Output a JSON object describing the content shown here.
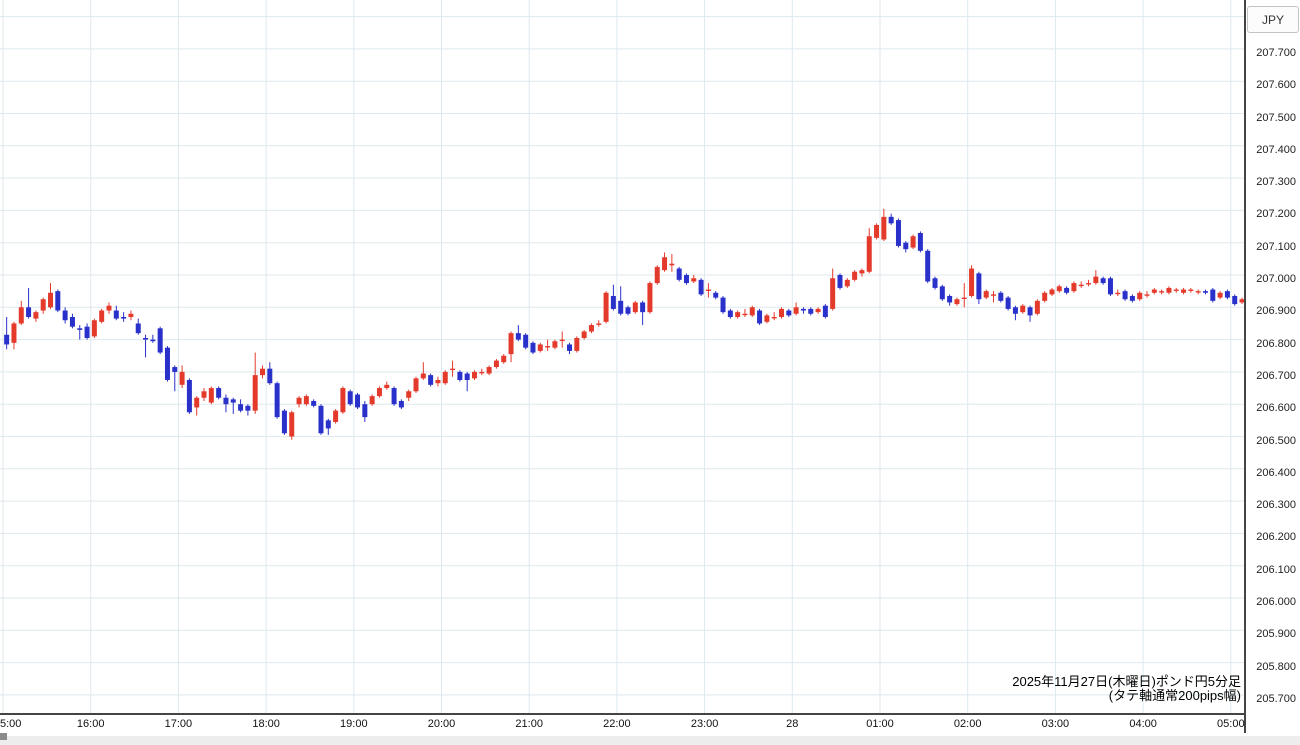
{
  "currency_label": "JPY",
  "annotation": {
    "line1": "2025年11月27日(木曜日)ポンド円5分足",
    "line2": "(タテ軸通常200pips幅)"
  },
  "colors": {
    "up_candle": "#e43a2c",
    "down_candle": "#2a31cb",
    "grid": "#dde9ee",
    "axis": "#444444",
    "text": "#222222"
  },
  "chart_data": {
    "type": "candlestick",
    "title": "ポンド円 5分足 (GBP/JPY 5-minute)",
    "date": "2025年11月27日(木曜日)",
    "note": "タテ軸通常200pips幅",
    "start_time": "15:00",
    "interval_minutes": 5,
    "x_tick_labels": [
      "5:00",
      "16:00",
      "17:00",
      "18:00",
      "19:00",
      "20:00",
      "21:00",
      "22:00",
      "23:00",
      "28",
      "01:00",
      "02:00",
      "03:00",
      "04:00",
      "05:00"
    ],
    "y_tick_labels": [
      "207.700",
      "207.600",
      "207.500",
      "207.400",
      "207.300",
      "207.200",
      "207.100",
      "207.000",
      "206.900",
      "206.800",
      "206.700",
      "206.600",
      "206.500",
      "206.400",
      "206.300",
      "206.200",
      "206.100",
      "206.000",
      "205.900",
      "205.800",
      "205.700"
    ],
    "ylim": [
      205.641,
      207.851
    ],
    "grid": true,
    "candles_ohlc": [
      [
        206.815,
        206.87,
        206.77,
        206.785
      ],
      [
        206.79,
        206.855,
        206.77,
        206.85
      ],
      [
        206.85,
        206.92,
        206.845,
        206.9
      ],
      [
        206.9,
        206.96,
        206.865,
        206.87
      ],
      [
        206.865,
        206.89,
        206.855,
        206.885
      ],
      [
        206.89,
        206.93,
        206.88,
        206.925
      ],
      [
        206.9,
        206.975,
        206.895,
        206.945
      ],
      [
        206.95,
        206.955,
        206.885,
        206.89
      ],
      [
        206.89,
        206.9,
        206.85,
        206.86
      ],
      [
        206.87,
        206.88,
        206.835,
        206.84
      ],
      [
        206.835,
        206.845,
        206.8,
        206.83
      ],
      [
        206.84,
        206.85,
        206.8,
        206.805
      ],
      [
        206.81,
        206.865,
        206.805,
        206.86
      ],
      [
        206.855,
        206.895,
        206.85,
        206.89
      ],
      [
        206.89,
        206.915,
        206.88,
        206.905
      ],
      [
        206.89,
        206.905,
        206.86,
        206.865
      ],
      [
        206.87,
        206.885,
        206.855,
        206.865
      ],
      [
        206.87,
        206.89,
        206.86,
        206.88
      ],
      [
        206.85,
        206.865,
        206.815,
        206.82
      ],
      [
        206.805,
        206.815,
        206.745,
        206.8
      ],
      [
        206.8,
        206.815,
        206.79,
        206.795
      ],
      [
        206.835,
        206.84,
        206.755,
        206.76
      ],
      [
        206.775,
        206.78,
        206.67,
        206.675
      ],
      [
        206.715,
        206.72,
        206.64,
        206.7
      ],
      [
        206.66,
        206.72,
        206.65,
        206.7
      ],
      [
        206.675,
        206.68,
        206.57,
        206.575
      ],
      [
        206.59,
        206.625,
        206.565,
        206.62
      ],
      [
        206.62,
        206.65,
        206.61,
        206.64
      ],
      [
        206.605,
        206.655,
        206.6,
        206.65
      ],
      [
        206.65,
        206.655,
        206.615,
        206.62
      ],
      [
        206.62,
        206.63,
        206.575,
        206.6
      ],
      [
        206.615,
        206.62,
        206.57,
        206.605
      ],
      [
        206.6,
        206.615,
        206.575,
        206.58
      ],
      [
        206.595,
        206.6,
        206.565,
        206.58
      ],
      [
        206.58,
        206.76,
        206.57,
        206.69
      ],
      [
        206.69,
        206.72,
        206.68,
        206.71
      ],
      [
        206.71,
        206.73,
        206.66,
        206.665
      ],
      [
        206.665,
        206.67,
        206.555,
        206.56
      ],
      [
        206.58,
        206.585,
        206.505,
        206.51
      ],
      [
        206.5,
        206.58,
        206.49,
        206.575
      ],
      [
        206.6,
        206.625,
        206.59,
        206.62
      ],
      [
        206.6,
        206.63,
        206.595,
        206.625
      ],
      [
        206.61,
        206.615,
        206.59,
        206.595
      ],
      [
        206.595,
        206.6,
        206.505,
        206.51
      ],
      [
        206.55,
        206.555,
        206.505,
        206.525
      ],
      [
        206.545,
        206.585,
        206.54,
        206.58
      ],
      [
        206.575,
        206.655,
        206.57,
        206.65
      ],
      [
        206.64,
        206.645,
        206.595,
        206.6
      ],
      [
        206.63,
        206.635,
        206.585,
        206.59
      ],
      [
        206.6,
        206.61,
        206.545,
        206.56
      ],
      [
        206.6,
        206.63,
        206.595,
        206.625
      ],
      [
        206.625,
        206.655,
        206.62,
        206.65
      ],
      [
        206.65,
        206.67,
        206.645,
        206.66
      ],
      [
        206.65,
        206.655,
        206.595,
        206.6
      ],
      [
        206.61,
        206.615,
        206.585,
        206.59
      ],
      [
        206.62,
        206.645,
        206.61,
        206.64
      ],
      [
        206.64,
        206.685,
        206.635,
        206.68
      ],
      [
        206.68,
        206.73,
        206.675,
        206.695
      ],
      [
        206.69,
        206.695,
        206.655,
        206.66
      ],
      [
        206.665,
        206.685,
        206.655,
        206.675
      ],
      [
        206.665,
        206.705,
        206.66,
        206.7
      ],
      [
        206.71,
        206.735,
        206.685,
        206.71
      ],
      [
        206.7,
        206.705,
        206.67,
        206.675
      ],
      [
        206.695,
        206.7,
        206.64,
        206.675
      ],
      [
        206.68,
        206.705,
        206.675,
        206.7
      ],
      [
        206.7,
        206.71,
        206.69,
        206.7
      ],
      [
        206.695,
        206.72,
        206.69,
        206.715
      ],
      [
        206.715,
        206.74,
        206.71,
        206.735
      ],
      [
        206.73,
        206.755,
        206.725,
        206.75
      ],
      [
        206.755,
        206.825,
        206.73,
        206.82
      ],
      [
        206.82,
        206.845,
        206.795,
        206.8
      ],
      [
        206.815,
        206.82,
        206.77,
        206.775
      ],
      [
        206.79,
        206.795,
        206.755,
        206.76
      ],
      [
        206.765,
        206.79,
        206.76,
        206.785
      ],
      [
        206.78,
        206.8,
        206.765,
        206.78
      ],
      [
        206.775,
        206.8,
        206.77,
        206.795
      ],
      [
        206.8,
        206.825,
        206.775,
        206.8
      ],
      [
        206.785,
        206.79,
        206.755,
        206.765
      ],
      [
        206.765,
        206.81,
        206.76,
        206.805
      ],
      [
        206.805,
        206.83,
        206.8,
        206.825
      ],
      [
        206.825,
        206.85,
        206.82,
        206.845
      ],
      [
        206.85,
        206.86,
        206.84,
        206.85
      ],
      [
        206.855,
        206.95,
        206.85,
        206.945
      ],
      [
        206.935,
        206.97,
        206.89,
        206.895
      ],
      [
        206.92,
        206.965,
        206.875,
        206.88
      ],
      [
        206.9,
        206.905,
        206.875,
        206.88
      ],
      [
        206.885,
        206.92,
        206.88,
        206.915
      ],
      [
        206.915,
        206.92,
        206.845,
        206.885
      ],
      [
        206.885,
        206.98,
        206.88,
        206.975
      ],
      [
        206.975,
        207.03,
        206.97,
        207.025
      ],
      [
        207.015,
        207.07,
        207.01,
        207.055
      ],
      [
        207.03,
        207.065,
        207.01,
        207.035
      ],
      [
        207.02,
        207.025,
        206.98,
        206.985
      ],
      [
        207.0,
        207.005,
        206.97,
        206.975
      ],
      [
        206.98,
        207.0,
        206.975,
        206.99
      ],
      [
        206.985,
        206.99,
        206.935,
        206.94
      ],
      [
        206.955,
        206.975,
        206.93,
        206.955
      ],
      [
        206.945,
        206.95,
        206.925,
        206.93
      ],
      [
        206.93,
        206.935,
        206.88,
        206.885
      ],
      [
        206.89,
        206.895,
        206.865,
        206.87
      ],
      [
        206.87,
        206.89,
        206.865,
        206.885
      ],
      [
        206.88,
        206.895,
        206.87,
        206.88
      ],
      [
        206.875,
        206.905,
        206.87,
        206.9
      ],
      [
        206.89,
        206.895,
        206.845,
        206.85
      ],
      [
        206.855,
        206.88,
        206.85,
        206.875
      ],
      [
        206.87,
        206.885,
        206.86,
        206.87
      ],
      [
        206.87,
        206.9,
        206.865,
        206.895
      ],
      [
        206.89,
        206.895,
        206.87,
        206.875
      ],
      [
        206.88,
        206.915,
        206.875,
        206.9
      ],
      [
        206.895,
        206.9,
        206.88,
        206.89
      ],
      [
        206.895,
        206.9,
        206.875,
        206.88
      ],
      [
        206.885,
        206.9,
        206.88,
        206.895
      ],
      [
        206.905,
        206.91,
        206.865,
        206.87
      ],
      [
        206.895,
        207.02,
        206.89,
        206.99
      ],
      [
        207.0,
        207.005,
        206.955,
        206.96
      ],
      [
        206.965,
        206.99,
        206.96,
        206.985
      ],
      [
        206.985,
        207.015,
        206.98,
        207.01
      ],
      [
        207.005,
        207.02,
        206.995,
        207.015
      ],
      [
        207.01,
        207.145,
        207.005,
        207.12
      ],
      [
        207.115,
        207.16,
        207.11,
        207.155
      ],
      [
        207.11,
        207.205,
        207.105,
        207.18
      ],
      [
        207.18,
        207.19,
        207.155,
        207.16
      ],
      [
        207.17,
        207.175,
        207.085,
        207.09
      ],
      [
        207.1,
        207.105,
        207.07,
        207.08
      ],
      [
        207.085,
        207.125,
        207.08,
        207.12
      ],
      [
        207.13,
        207.135,
        207.07,
        207.075
      ],
      [
        207.075,
        207.08,
        206.975,
        206.98
      ],
      [
        206.99,
        206.995,
        206.955,
        206.96
      ],
      [
        206.965,
        206.97,
        206.92,
        206.925
      ],
      [
        206.935,
        206.94,
        206.905,
        206.915
      ],
      [
        206.91,
        206.93,
        206.905,
        206.925
      ],
      [
        206.93,
        206.975,
        206.9,
        206.93
      ],
      [
        206.935,
        207.03,
        206.93,
        207.02
      ],
      [
        207.005,
        207.01,
        206.91,
        206.925
      ],
      [
        206.93,
        206.955,
        206.925,
        206.95
      ],
      [
        206.94,
        206.95,
        206.915,
        206.94
      ],
      [
        206.945,
        206.95,
        206.915,
        206.92
      ],
      [
        206.93,
        206.935,
        206.89,
        206.895
      ],
      [
        206.9,
        206.905,
        206.86,
        206.88
      ],
      [
        206.885,
        206.91,
        206.88,
        206.905
      ],
      [
        206.9,
        206.905,
        206.855,
        206.875
      ],
      [
        206.88,
        206.925,
        206.875,
        206.92
      ],
      [
        206.92,
        206.95,
        206.915,
        206.945
      ],
      [
        206.94,
        206.96,
        206.935,
        206.955
      ],
      [
        206.95,
        206.97,
        206.945,
        206.965
      ],
      [
        206.96,
        206.965,
        206.94,
        206.945
      ],
      [
        206.95,
        206.98,
        206.945,
        206.975
      ],
      [
        206.97,
        206.98,
        206.96,
        206.97
      ],
      [
        206.975,
        206.985,
        206.965,
        206.975
      ],
      [
        206.975,
        207.015,
        206.97,
        206.995
      ],
      [
        206.99,
        206.995,
        206.97,
        206.975
      ],
      [
        206.99,
        206.995,
        206.935,
        206.94
      ],
      [
        206.945,
        206.955,
        206.935,
        206.945
      ],
      [
        206.95,
        206.955,
        206.92,
        206.925
      ],
      [
        206.935,
        206.94,
        206.915,
        206.92
      ],
      [
        206.925,
        206.95,
        206.92,
        206.945
      ],
      [
        206.94,
        206.95,
        206.93,
        206.94
      ],
      [
        206.945,
        206.96,
        206.94,
        206.955
      ],
      [
        206.95,
        206.955,
        206.94,
        206.95
      ],
      [
        206.945,
        206.965,
        206.94,
        206.96
      ],
      [
        206.955,
        206.96,
        206.945,
        206.955
      ],
      [
        206.945,
        206.96,
        206.94,
        206.955
      ],
      [
        206.955,
        206.96,
        206.945,
        206.955
      ],
      [
        206.95,
        206.955,
        206.94,
        206.95
      ],
      [
        206.95,
        206.955,
        206.94,
        206.945
      ],
      [
        206.955,
        206.96,
        206.915,
        206.92
      ],
      [
        206.93,
        206.95,
        206.925,
        206.945
      ],
      [
        206.95,
        206.955,
        206.925,
        206.93
      ],
      [
        206.935,
        206.94,
        206.905,
        206.91
      ],
      [
        206.915,
        206.93,
        206.91,
        206.925
      ]
    ]
  }
}
